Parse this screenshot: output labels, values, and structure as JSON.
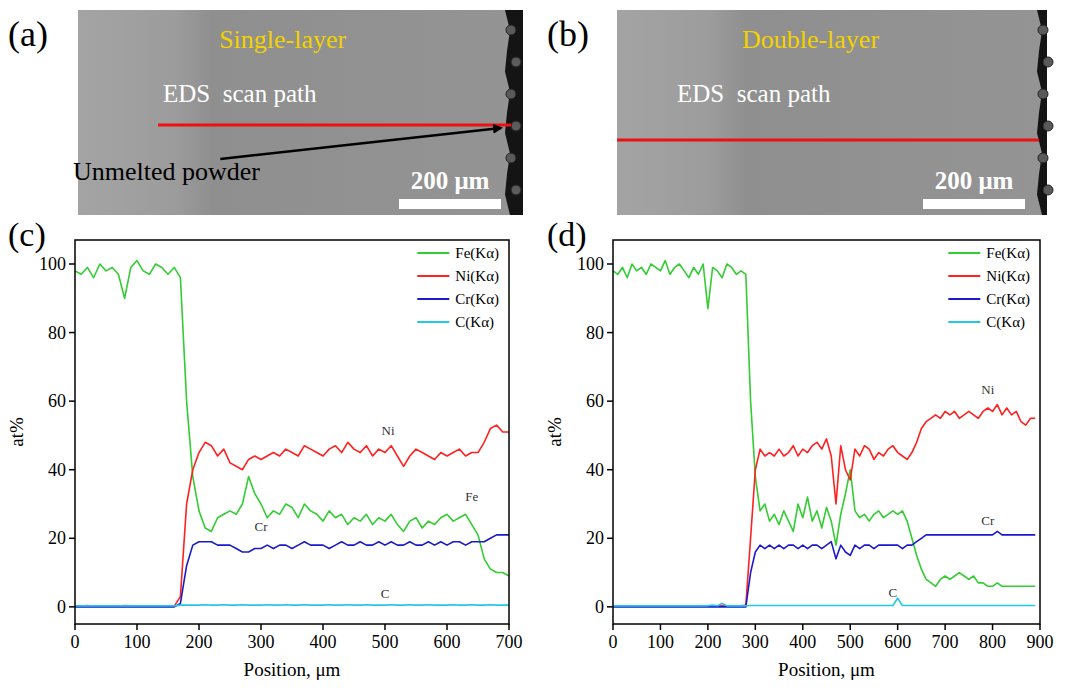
{
  "images": [
    {
      "panel_label": "(a)",
      "title": "Single-layer",
      "scan_label": "EDS  scan path",
      "annotation": "Unmelted powder",
      "scale_bar": "200 μm"
    },
    {
      "panel_label": "(b)",
      "title": "Double-layer",
      "scan_label": "EDS  scan path",
      "scale_bar": "200 μm"
    }
  ],
  "chart_data": [
    {
      "type": "line",
      "panel_label": "(c)",
      "x_label": "Position, μm",
      "y_label": "at%",
      "xlim": [
        0,
        700
      ],
      "xticks": [
        0,
        100,
        200,
        300,
        400,
        500,
        600,
        700
      ],
      "ylim": [
        -5,
        107
      ],
      "yticks": [
        0,
        20,
        40,
        60,
        80,
        100
      ],
      "grid": false,
      "legend": "upper right",
      "x": [
        0,
        10,
        20,
        30,
        40,
        50,
        60,
        70,
        80,
        90,
        100,
        110,
        120,
        130,
        140,
        150,
        160,
        170,
        180,
        190,
        200,
        210,
        220,
        230,
        240,
        250,
        260,
        270,
        280,
        290,
        300,
        310,
        320,
        330,
        340,
        350,
        360,
        370,
        380,
        390,
        400,
        410,
        420,
        430,
        440,
        450,
        460,
        470,
        480,
        490,
        500,
        510,
        520,
        530,
        540,
        550,
        560,
        570,
        580,
        590,
        600,
        610,
        620,
        630,
        640,
        650,
        660,
        670,
        680,
        690,
        700
      ],
      "series": [
        {
          "name": "Fe(Kα)",
          "color": "#33cc33",
          "values": [
            98,
            97,
            99,
            96,
            100,
            98,
            99,
            97,
            90,
            99,
            101,
            98,
            97,
            100,
            99,
            97,
            99,
            96,
            60,
            38,
            28,
            23,
            22,
            26,
            27,
            28,
            27,
            30,
            38,
            33,
            30,
            26,
            28,
            27,
            30,
            29,
            26,
            30,
            28,
            27,
            25,
            28,
            26,
            27,
            24,
            26,
            25,
            27,
            24,
            26,
            25,
            27,
            24,
            22,
            25,
            26,
            23,
            25,
            24,
            26,
            27,
            25,
            26,
            27,
            24,
            21,
            14,
            11,
            10,
            10,
            9
          ]
        },
        {
          "name": "Ni(Kα)",
          "color": "#ff2020",
          "values": [
            0.3,
            0.2,
            0.4,
            0.2,
            0.3,
            0.2,
            0.3,
            0.2,
            0.4,
            0.3,
            0.2,
            0.3,
            0.2,
            0.3,
            0.2,
            0.3,
            0.2,
            3,
            30,
            40,
            45,
            48,
            47,
            44,
            46,
            42,
            41,
            40,
            43,
            44,
            43,
            44,
            45,
            44,
            46,
            45,
            44,
            47,
            46,
            45,
            44,
            46,
            47,
            45,
            48,
            46,
            45,
            47,
            44,
            46,
            45,
            47,
            44,
            41,
            44,
            46,
            45,
            44,
            43,
            45,
            44,
            45,
            46,
            44,
            45,
            45,
            48,
            52,
            53,
            51,
            51
          ]
        },
        {
          "name": "Cr(Kα)",
          "color": "#1a1acc",
          "values": [
            0,
            0,
            0,
            0,
            0,
            0,
            0,
            0,
            0,
            0,
            0,
            0,
            0,
            0,
            0,
            0,
            0,
            1,
            12,
            18,
            19,
            19,
            19,
            18,
            18,
            18,
            17,
            16,
            16,
            17,
            17,
            18,
            17,
            18,
            18,
            17,
            18,
            19,
            18,
            18,
            18,
            17,
            18,
            19,
            18,
            18,
            19,
            18,
            18,
            19,
            18,
            19,
            18,
            18,
            19,
            18,
            18,
            19,
            18,
            19,
            18,
            19,
            19,
            18,
            19,
            19,
            19,
            20,
            21,
            21,
            21
          ]
        },
        {
          "name": "C(Kα)",
          "color": "#22c8e6",
          "values": [
            0.3,
            0.3,
            0.3,
            0.3,
            0.3,
            0.3,
            0.3,
            0.3,
            0.3,
            0.3,
            0.3,
            0.3,
            0.3,
            0.3,
            0.3,
            0.3,
            0.3,
            0.5,
            0.5,
            0.5,
            0.5,
            0.6,
            0.5,
            0.5,
            0.6,
            0.5,
            0.5,
            0.6,
            0.5,
            0.5,
            0.5,
            0.6,
            0.5,
            0.5,
            0.6,
            0.5,
            0.5,
            0.6,
            0.5,
            0.5,
            0.5,
            0.6,
            0.5,
            0.5,
            0.6,
            0.5,
            0.5,
            0.6,
            0.5,
            0.5,
            0.5,
            0.6,
            0.5,
            0.5,
            0.6,
            0.5,
            0.5,
            0.6,
            0.5,
            0.5,
            0.5,
            0.6,
            0.5,
            0.5,
            0.6,
            0.5,
            0.5,
            0.6,
            0.5,
            0.5,
            0.5
          ]
        }
      ],
      "annotations": [
        {
          "text": "Ni",
          "x": 505,
          "y": 50
        },
        {
          "text": "Fe",
          "x": 640,
          "y": 31
        },
        {
          "text": "Cr",
          "x": 300,
          "y": 22
        },
        {
          "text": "C",
          "x": 500,
          "y": 2.5
        }
      ]
    },
    {
      "type": "line",
      "panel_label": "(d)",
      "x_label": "Position, μm",
      "y_label": "at%",
      "xlim": [
        0,
        900
      ],
      "xticks": [
        0,
        100,
        200,
        300,
        400,
        500,
        600,
        700,
        800,
        900
      ],
      "ylim": [
        -5,
        107
      ],
      "yticks": [
        0,
        20,
        40,
        60,
        80,
        100
      ],
      "grid": false,
      "legend": "upper right",
      "x": [
        0,
        10,
        20,
        30,
        40,
        50,
        60,
        70,
        80,
        90,
        100,
        110,
        120,
        130,
        140,
        150,
        160,
        170,
        180,
        190,
        200,
        210,
        220,
        230,
        240,
        250,
        260,
        270,
        280,
        290,
        300,
        310,
        320,
        330,
        340,
        350,
        360,
        370,
        380,
        390,
        400,
        410,
        420,
        430,
        440,
        450,
        460,
        470,
        480,
        490,
        500,
        510,
        520,
        530,
        540,
        550,
        560,
        570,
        580,
        590,
        600,
        610,
        620,
        630,
        640,
        650,
        660,
        670,
        680,
        690,
        700,
        710,
        720,
        730,
        740,
        750,
        760,
        770,
        780,
        790,
        800,
        810,
        820,
        830,
        840,
        850,
        860,
        870,
        880,
        890
      ],
      "series": [
        {
          "name": "Fe(Kα)",
          "color": "#33cc33",
          "values": [
            98,
            97,
            99,
            96,
            100,
            98,
            99,
            97,
            100,
            99,
            98,
            101,
            97,
            99,
            100,
            98,
            96,
            99,
            97,
            100,
            87,
            99,
            98,
            96,
            100,
            99,
            97,
            98,
            97,
            60,
            38,
            28,
            30,
            25,
            27,
            24,
            28,
            25,
            22,
            30,
            26,
            32,
            25,
            28,
            23,
            29,
            25,
            18,
            27,
            33,
            40,
            28,
            26,
            27,
            25,
            27,
            28,
            26,
            27,
            28,
            27,
            28,
            25,
            20,
            15,
            11,
            8,
            7,
            6,
            8,
            9,
            8,
            9,
            10,
            9,
            8,
            9,
            7,
            7,
            6,
            6,
            7,
            6,
            6,
            6,
            6,
            6,
            6,
            6,
            6
          ]
        },
        {
          "name": "Ni(Kα)",
          "color": "#ff2020",
          "values": [
            0.2,
            0.3,
            0.2,
            0.3,
            0.2,
            0.3,
            0.2,
            0.3,
            0.2,
            0.3,
            0.2,
            0.3,
            0.2,
            0.3,
            0.2,
            0.3,
            0.2,
            0.3,
            0.2,
            0.3,
            0.2,
            0.3,
            0.2,
            0.3,
            0.2,
            0.3,
            0.2,
            0.3,
            0.5,
            20,
            40,
            46,
            44,
            45,
            44,
            46,
            44,
            45,
            47,
            44,
            46,
            45,
            47,
            48,
            46,
            49,
            44,
            30,
            47,
            40,
            37,
            46,
            44,
            47,
            46,
            43,
            45,
            44,
            46,
            47,
            45,
            44,
            43,
            45,
            48,
            52,
            54,
            55,
            56,
            55,
            57,
            56,
            57,
            55,
            56,
            57,
            56,
            55,
            57,
            58,
            57,
            59,
            56,
            58,
            56,
            57,
            54,
            53,
            55,
            55
          ]
        },
        {
          "name": "Cr(Kα)",
          "color": "#1a1acc",
          "values": [
            0,
            0,
            0,
            0,
            0,
            0,
            0,
            0,
            0,
            0,
            0,
            0,
            0,
            0,
            0,
            0,
            0,
            0,
            0,
            0,
            0,
            0,
            0,
            0,
            0,
            0,
            0,
            0,
            0,
            10,
            16,
            18,
            17,
            18,
            17,
            18,
            17,
            18,
            18,
            17,
            18,
            17,
            18,
            18,
            17,
            18,
            19,
            14,
            18,
            16,
            15,
            18,
            17,
            18,
            18,
            17,
            18,
            18,
            18,
            18,
            18,
            17,
            18,
            18,
            19,
            20,
            21,
            21,
            21,
            21,
            21,
            21,
            21,
            21,
            21,
            21,
            21,
            21,
            21,
            21,
            21,
            22,
            21,
            21,
            21,
            21,
            21,
            21,
            21,
            21
          ]
        },
        {
          "name": "C(Kα)",
          "color": "#22c8e6",
          "values": [
            0.3,
            0.3,
            0.3,
            0.3,
            0.3,
            0.3,
            0.3,
            0.3,
            0.3,
            0.3,
            0.3,
            0.3,
            0.3,
            0.3,
            0.3,
            0.3,
            0.3,
            0.3,
            0.3,
            0.3,
            0.3,
            0.5,
            0.3,
            1,
            0.3,
            0.3,
            0.3,
            0.3,
            0.3,
            0.4,
            0.4,
            0.4,
            0.4,
            0.4,
            0.4,
            0.4,
            0.4,
            0.4,
            0.4,
            0.4,
            0.4,
            0.4,
            0.4,
            0.4,
            0.4,
            0.4,
            0.4,
            0.4,
            0.4,
            0.4,
            0.4,
            0.4,
            0.4,
            0.4,
            0.4,
            0.4,
            0.4,
            0.4,
            0.4,
            0.4,
            2.5,
            0.4,
            0.4,
            0.4,
            0.4,
            0.4,
            0.4,
            0.4,
            0.4,
            0.4,
            0.4,
            0.4,
            0.4,
            0.4,
            0.4,
            0.4,
            0.4,
            0.4,
            0.4,
            0.4,
            0.4,
            0.4,
            0.4,
            0.4,
            0.4,
            0.4,
            0.4,
            0.4,
            0.4,
            0.4
          ]
        }
      ],
      "annotations": [
        {
          "text": "Ni",
          "x": 790,
          "y": 62
        },
        {
          "text": "Cr",
          "x": 790,
          "y": 24
        },
        {
          "text": "C",
          "x": 590,
          "y": 3
        }
      ]
    }
  ]
}
